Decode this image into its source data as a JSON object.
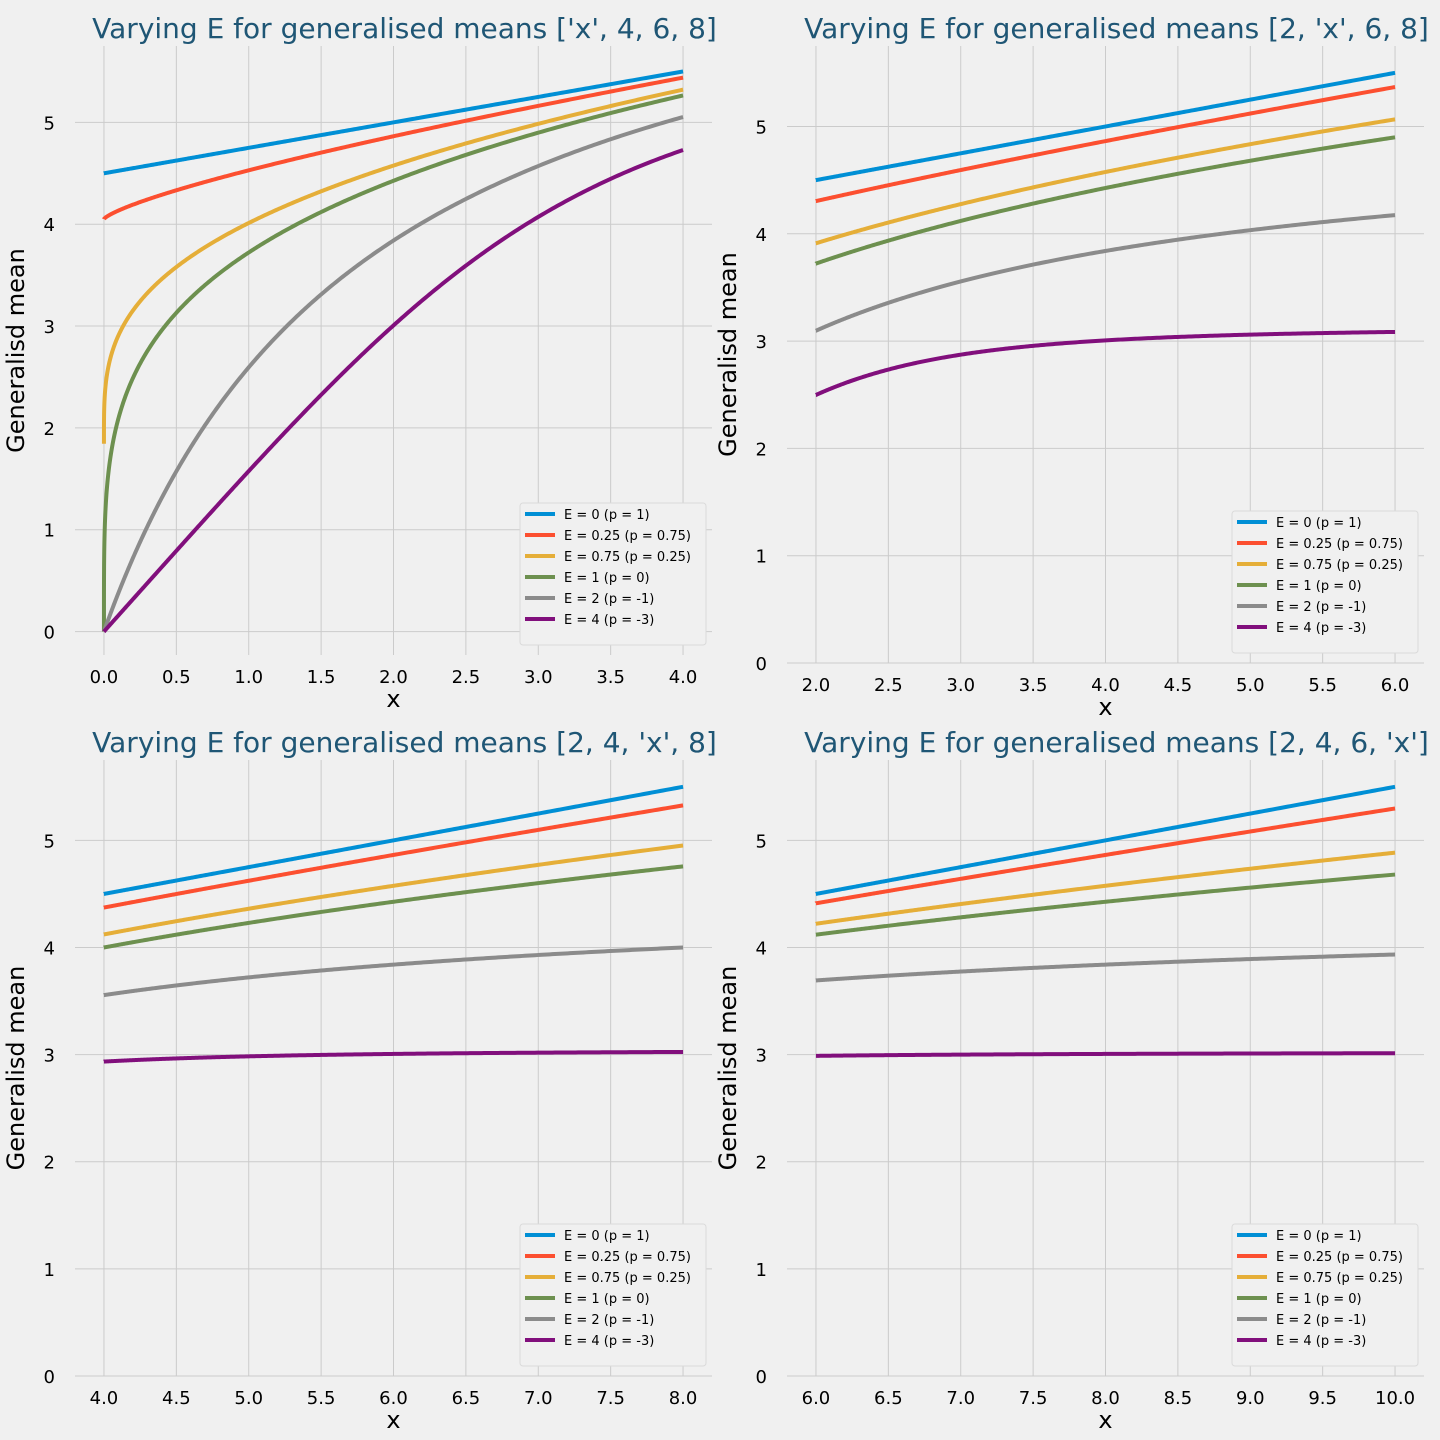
{
  "chart_data": [
    {
      "type": "line",
      "title": "Varying E for generalised means ['x', 4, 6, 8]",
      "xlabel": "x",
      "ylabel": "Generalisd mean",
      "xlim": [
        -0.2,
        4.2
      ],
      "ylim": [
        -0.23,
        5.75
      ],
      "xticks": [
        0.0,
        0.5,
        1.0,
        1.5,
        2.0,
        2.5,
        3.0,
        3.5,
        4.0
      ],
      "xtick_labels": [
        "0.0",
        "0.5",
        "1.0",
        "1.5",
        "2.0",
        "2.5",
        "3.0",
        "3.5",
        "4.0"
      ],
      "yticks": [
        0,
        1,
        2,
        3,
        4,
        5
      ],
      "ytick_labels": [
        "0",
        "1",
        "2",
        "3",
        "4",
        "5"
      ],
      "grid": true,
      "legend_position": "lower-right",
      "others": [
        4,
        6,
        8
      ],
      "x_range": [
        0,
        4
      ],
      "series": [
        {
          "name": "E = 0 (p = 1)",
          "p": 1,
          "color": "#008fd5"
        },
        {
          "name": "E = 0.25 (p = 0.75)",
          "p": 0.75,
          "color": "#fc4f30"
        },
        {
          "name": "E = 0.75 (p = 0.25)",
          "p": 0.25,
          "color": "#e5ae38"
        },
        {
          "name": "E = 1 (p = 0)",
          "p": 0,
          "color": "#6d904f"
        },
        {
          "name": "E = 2 (p = -1)",
          "p": -1,
          "color": "#8b8b8b"
        },
        {
          "name": "E = 4 (p = -3)",
          "p": -3,
          "color": "#810f7c"
        }
      ]
    },
    {
      "type": "line",
      "title": "Varying E for generalised means [2, 'x', 6, 8]",
      "xlabel": "x",
      "ylabel": "Generalisd mean",
      "xlim": [
        1.8,
        6.2
      ],
      "ylim": [
        0,
        5.75
      ],
      "xticks": [
        2.0,
        2.5,
        3.0,
        3.5,
        4.0,
        4.5,
        5.0,
        5.5,
        6.0
      ],
      "xtick_labels": [
        "2.0",
        "2.5",
        "3.0",
        "3.5",
        "4.0",
        "4.5",
        "5.0",
        "5.5",
        "6.0"
      ],
      "yticks": [
        0,
        1,
        2,
        3,
        4,
        5
      ],
      "ytick_labels": [
        "0",
        "1",
        "2",
        "3",
        "4",
        "5"
      ],
      "grid": true,
      "legend_position": "lower-right",
      "others": [
        2,
        6,
        8
      ],
      "x_range": [
        2,
        6
      ],
      "series": [
        {
          "name": "E = 0 (p = 1)",
          "p": 1,
          "color": "#008fd5"
        },
        {
          "name": "E = 0.25 (p = 0.75)",
          "p": 0.75,
          "color": "#fc4f30"
        },
        {
          "name": "E = 0.75 (p = 0.25)",
          "p": 0.25,
          "color": "#e5ae38"
        },
        {
          "name": "E = 1 (p = 0)",
          "p": 0,
          "color": "#6d904f"
        },
        {
          "name": "E = 2 (p = -1)",
          "p": -1,
          "color": "#8b8b8b"
        },
        {
          "name": "E = 4 (p = -3)",
          "p": -3,
          "color": "#810f7c"
        }
      ]
    },
    {
      "type": "line",
      "title": "Varying E for generalised means [2, 4, 'x', 8]",
      "xlabel": "x",
      "ylabel": "Generalisd mean",
      "xlim": [
        3.8,
        8.2
      ],
      "ylim": [
        0,
        5.75
      ],
      "xticks": [
        4.0,
        4.5,
        5.0,
        5.5,
        6.0,
        6.5,
        7.0,
        7.5,
        8.0
      ],
      "xtick_labels": [
        "4.0",
        "4.5",
        "5.0",
        "5.5",
        "6.0",
        "6.5",
        "7.0",
        "7.5",
        "8.0"
      ],
      "yticks": [
        0,
        1,
        2,
        3,
        4,
        5
      ],
      "ytick_labels": [
        "0",
        "1",
        "2",
        "3",
        "4",
        "5"
      ],
      "grid": true,
      "legend_position": "lower-right",
      "others": [
        2,
        4,
        8
      ],
      "x_range": [
        4,
        8
      ],
      "series": [
        {
          "name": "E = 0 (p = 1)",
          "p": 1,
          "color": "#008fd5"
        },
        {
          "name": "E = 0.25 (p = 0.75)",
          "p": 0.75,
          "color": "#fc4f30"
        },
        {
          "name": "E = 0.75 (p = 0.25)",
          "p": 0.25,
          "color": "#e5ae38"
        },
        {
          "name": "E = 1 (p = 0)",
          "p": 0,
          "color": "#6d904f"
        },
        {
          "name": "E = 2 (p = -1)",
          "p": -1,
          "color": "#8b8b8b"
        },
        {
          "name": "E = 4 (p = -3)",
          "p": -3,
          "color": "#810f7c"
        }
      ]
    },
    {
      "type": "line",
      "title": "Varying E for generalised means [2, 4, 6, 'x']",
      "xlabel": "x",
      "ylabel": "Generalisd mean",
      "xlim": [
        5.8,
        10.2
      ],
      "ylim": [
        0,
        5.75
      ],
      "xticks": [
        6.0,
        6.5,
        7.0,
        7.5,
        8.0,
        8.5,
        9.0,
        9.5,
        10.0
      ],
      "xtick_labels": [
        "6.0",
        "6.5",
        "7.0",
        "7.5",
        "8.0",
        "8.5",
        "9.0",
        "9.5",
        "10.0"
      ],
      "yticks": [
        0,
        1,
        2,
        3,
        4,
        5
      ],
      "ytick_labels": [
        "0",
        "1",
        "2",
        "3",
        "4",
        "5"
      ],
      "grid": true,
      "legend_position": "lower-right",
      "others": [
        2,
        4,
        6
      ],
      "x_range": [
        6,
        10
      ],
      "series": [
        {
          "name": "E = 0 (p = 1)",
          "p": 1,
          "color": "#008fd5"
        },
        {
          "name": "E = 0.25 (p = 0.75)",
          "p": 0.75,
          "color": "#fc4f30"
        },
        {
          "name": "E = 0.75 (p = 0.25)",
          "p": 0.25,
          "color": "#e5ae38"
        },
        {
          "name": "E = 1 (p = 0)",
          "p": 0,
          "color": "#6d904f"
        },
        {
          "name": "E = 2 (p = -1)",
          "p": -1,
          "color": "#8b8b8b"
        },
        {
          "name": "E = 4 (p = -3)",
          "p": -3,
          "color": "#810f7c"
        }
      ]
    }
  ]
}
